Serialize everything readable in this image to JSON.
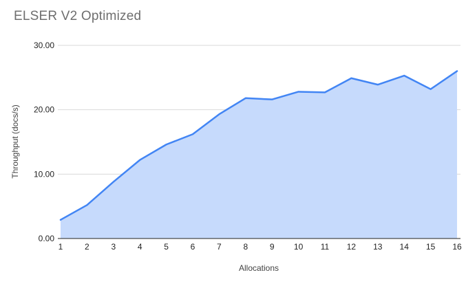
{
  "title": "ELSER V2 Optimized",
  "chart_data": {
    "type": "area",
    "title": "ELSER V2 Optimized",
    "xlabel": "Allocations",
    "ylabel": "Throughput (docs/s)",
    "x": [
      1,
      2,
      3,
      4,
      5,
      6,
      7,
      8,
      9,
      10,
      11,
      12,
      13,
      14,
      15,
      16
    ],
    "xtick_labels": [
      "1",
      "2",
      "3",
      "4",
      "5",
      "6",
      "7",
      "8",
      "9",
      "10",
      "11",
      "12",
      "13",
      "14",
      "15",
      "16"
    ],
    "series": [
      {
        "name": "Throughput (docs/s)",
        "values": [
          2.9,
          5.2,
          8.8,
          12.2,
          14.6,
          16.2,
          19.3,
          21.8,
          21.6,
          22.8,
          22.7,
          24.9,
          23.9,
          25.3,
          23.2,
          26.0
        ]
      }
    ],
    "ylim": [
      0,
      30
    ],
    "yticks": [
      0,
      10,
      20,
      30
    ],
    "ytick_labels": [
      "0.00",
      "10.00",
      "20.00",
      "30.00"
    ],
    "grid": "horizontal",
    "legend": "none",
    "colors": {
      "line": "#4285f4",
      "fill": "#c6dafc",
      "grid": "#d9d9d9",
      "axis_line": "#212121",
      "tick_text": "#1f1f1f",
      "title_text": "#6e6e6e",
      "background": "#ffffff"
    }
  }
}
